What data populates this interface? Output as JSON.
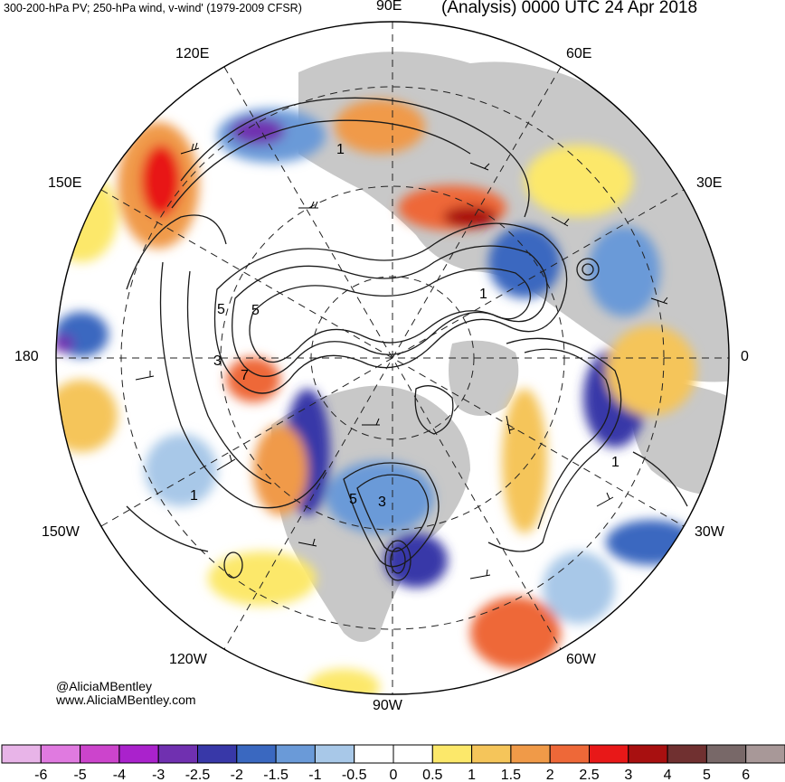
{
  "header": {
    "left_title": "300-200-hPa PV; 250-hPa wind, v-wind' (1979-2009 CFSR)",
    "right_title": "(Analysis) 0000 UTC 24 Apr 2018"
  },
  "longitude_labels": {
    "lon_0": "0",
    "lon_30e": "30E",
    "lon_60e": "60E",
    "lon_90e": "90E",
    "lon_120e": "120E",
    "lon_150e": "150E",
    "lon_180": "180",
    "lon_150w": "150W",
    "lon_120w": "120W",
    "lon_90w": "90W",
    "lon_60w": "60W",
    "lon_30w": "30W"
  },
  "contour_labels": [
    "5",
    "5",
    "3",
    "7",
    "1",
    "5",
    "3",
    "1",
    "1",
    "1"
  ],
  "credits": {
    "twitter": "@AliciaMBentley",
    "website": "www.AliciaMBentley.com"
  },
  "colorbar": {
    "labels": [
      "-6",
      "-5",
      "-4",
      "-3",
      "-2.5",
      "-2",
      "-1.5",
      "-1",
      "-0.5",
      "0",
      "0.5",
      "1",
      "1.5",
      "2",
      "2.5",
      "3",
      "4",
      "5",
      "6"
    ],
    "colors": [
      "#e8b4e8",
      "#e07ae0",
      "#cc44cc",
      "#aa22cc",
      "#7030b0",
      "#3838a8",
      "#3a68c0",
      "#6a9ad8",
      "#a8c8e8",
      "#ffffff",
      "#ffffff",
      "#fce86a",
      "#f5c55a",
      "#f09a48",
      "#ee6838",
      "#e81818",
      "#a81010",
      "#703030",
      "#786868",
      "#a89898"
    ]
  },
  "colors": {
    "land": "#c8c8c8",
    "ocean": "#ffffff",
    "contour": "#1a1a1a"
  }
}
